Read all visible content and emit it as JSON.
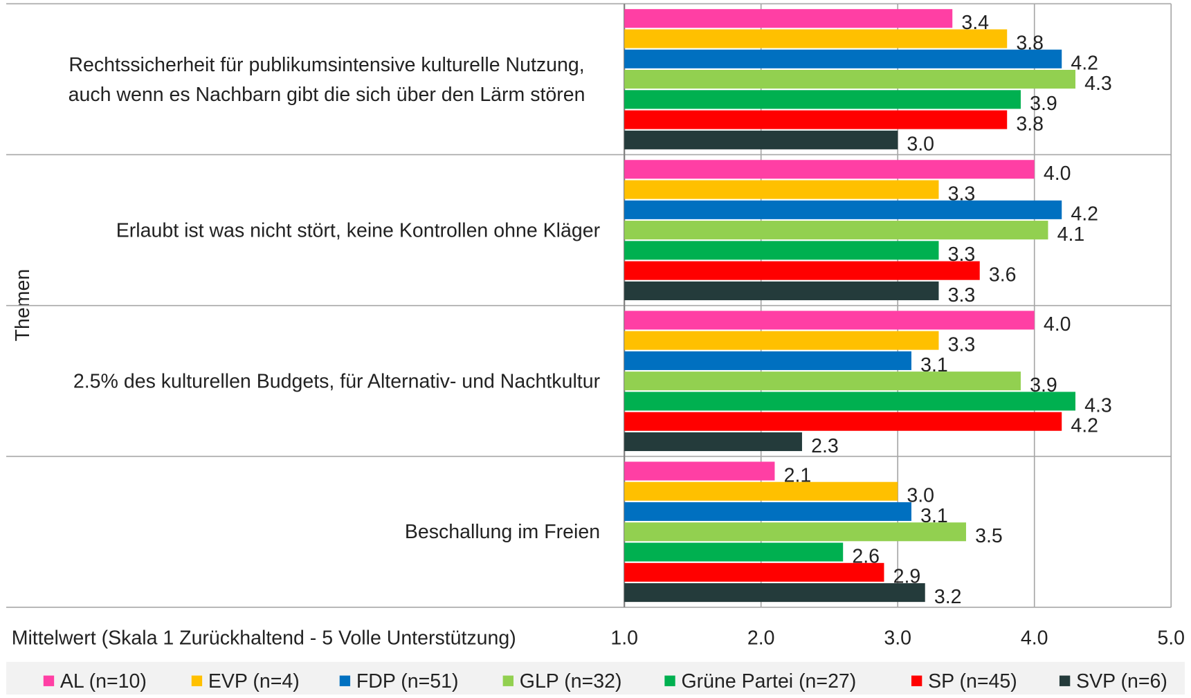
{
  "chart_data": {
    "type": "hbar",
    "xlabel": "Mittelwert (Skala 1 Zurückhaltend - 5 Volle Unterstützung)",
    "ylabel": "Themen",
    "categories": [
      "Rechtssicherheit für publikumsintensive kulturelle Nutzung, auch wenn es Nachbarn gibt die sich über den Lärm stören",
      "Erlaubt ist was nicht stört, keine Kontrollen ohne Kläger",
      "2.5% des kulturellen Budgets, für Alternativ- und Nachtkultur",
      "Beschallung im Freien"
    ],
    "series": [
      {
        "name": "AL (n=10)",
        "color": "#ff3fa4",
        "values": [
          3.4,
          4.0,
          4.0,
          2.1
        ],
        "value_labels": [
          "3.4",
          "4.0",
          "4.0",
          "2.1"
        ]
      },
      {
        "name": "EVP (n=4)",
        "color": "#ffc000",
        "values": [
          3.8,
          3.3,
          3.3,
          3.0
        ],
        "value_labels": [
          "3.8",
          "3.3",
          "3.3",
          "3.0"
        ]
      },
      {
        "name": "FDP (n=51)",
        "color": "#0070c0",
        "values": [
          4.2,
          4.2,
          3.1,
          3.1
        ],
        "value_labels": [
          "4.2",
          "4.2",
          "3.1",
          "3.1"
        ]
      },
      {
        "name": "GLP (n=32)",
        "color": "#92d050",
        "values": [
          4.3,
          4.1,
          3.9,
          3.5
        ],
        "value_labels": [
          "4.3",
          "4.1",
          "3.9",
          "3.5"
        ]
      },
      {
        "name": "Grüne Partei (n=27)",
        "color": "#00b050",
        "values": [
          3.9,
          3.3,
          4.3,
          2.6
        ],
        "value_labels": [
          "3.9",
          "3.3",
          "4.3",
          "2.6"
        ]
      },
      {
        "name": "SP (n=45)",
        "color": "#ff0000",
        "values": [
          3.8,
          3.6,
          4.2,
          2.9
        ],
        "value_labels": [
          "3.8",
          "3.6",
          "4.2",
          "2.9"
        ]
      },
      {
        "name": "SVP (n=6)",
        "color": "#243b3b",
        "values": [
          3.0,
          3.3,
          2.3,
          3.2
        ],
        "value_labels": [
          "3.0",
          "3.3",
          "2.3",
          "3.2"
        ]
      }
    ],
    "xlim": [
      1,
      5
    ],
    "xticks": [
      {
        "value": 1,
        "label": "1.0"
      },
      {
        "value": 2,
        "label": "2.0"
      },
      {
        "value": 3,
        "label": "3.0"
      },
      {
        "value": 4,
        "label": "4.0"
      },
      {
        "value": 5,
        "label": "5.0"
      }
    ],
    "grid": true,
    "legend": "bottom"
  }
}
